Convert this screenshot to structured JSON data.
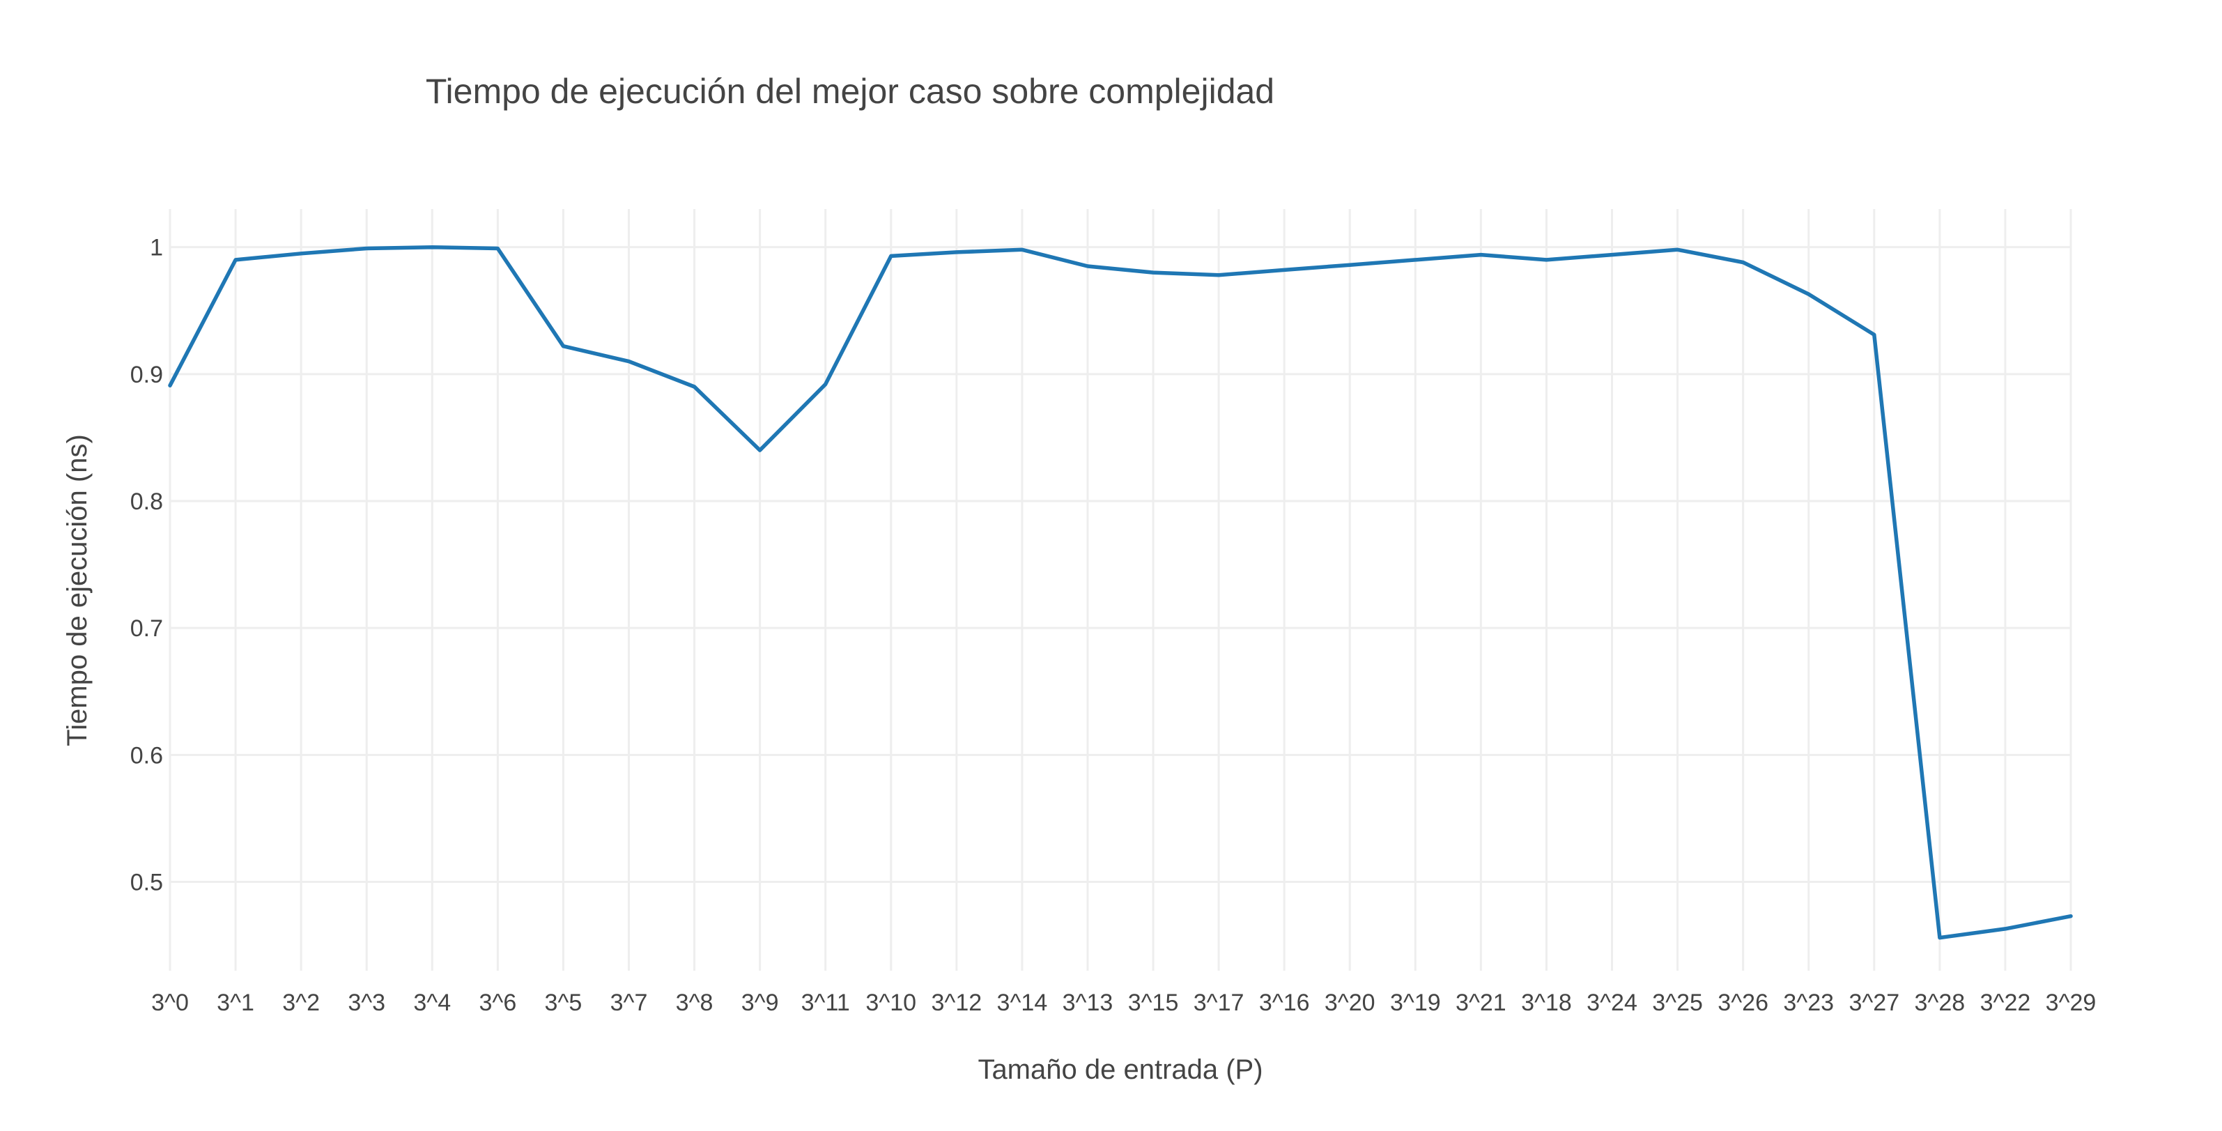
{
  "chart_data": {
    "type": "line",
    "title": "Tiempo de ejecución del mejor caso sobre complejidad",
    "xlabel": "Tamaño de entrada (P)",
    "ylabel": "Tiempo de ejecución (ns)",
    "categories": [
      "3^0",
      "3^1",
      "3^2",
      "3^3",
      "3^4",
      "3^6",
      "3^5",
      "3^7",
      "3^8",
      "3^9",
      "3^11",
      "3^10",
      "3^12",
      "3^14",
      "3^13",
      "3^15",
      "3^17",
      "3^16",
      "3^20",
      "3^19",
      "3^21",
      "3^18",
      "3^24",
      "3^25",
      "3^26",
      "3^23",
      "3^27",
      "3^28",
      "3^22",
      "3^29"
    ],
    "series": [
      {
        "values": [
          0.891,
          0.99,
          0.995,
          0.999,
          1.0,
          0.999,
          0.922,
          0.91,
          0.89,
          0.84,
          0.892,
          0.993,
          0.996,
          0.998,
          0.985,
          0.98,
          0.978,
          0.982,
          0.986,
          0.99,
          0.994,
          0.99,
          0.994,
          0.998,
          0.988,
          0.963,
          0.931,
          0.456,
          0.463,
          0.473
        ],
        "color": "#1f77b4"
      }
    ],
    "ylim": [
      0.43,
      1.03
    ],
    "yticks": [
      {
        "value": 0.5,
        "label": "0.5"
      },
      {
        "value": 0.6,
        "label": "0.6"
      },
      {
        "value": 0.7,
        "label": "0.7"
      },
      {
        "value": 0.8,
        "label": "0.8"
      },
      {
        "value": 0.9,
        "label": "0.9"
      },
      {
        "value": 1.0,
        "label": "1"
      }
    ],
    "grid": true,
    "legend": "none"
  }
}
